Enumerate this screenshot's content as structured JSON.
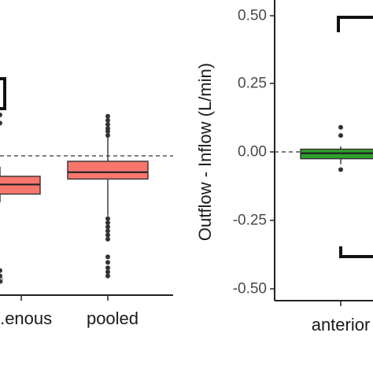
{
  "chart_data": [
    {
      "type": "box",
      "title": "",
      "xlabel": "",
      "ylabel": "",
      "categories": [
        "...enous",
        "pooled"
      ],
      "reference_line": 0.0,
      "series": [
        {
          "category": "...enous",
          "color": "#F8766D",
          "q1": -0.14,
          "median": -0.105,
          "q3": -0.075,
          "whisker_low": -0.17,
          "whisker_high": -0.04,
          "outliers": [
            0.15,
            0.12,
            -0.42,
            -0.44,
            -0.46
          ]
        },
        {
          "category": "pooled",
          "color": "#F8766D",
          "q1": -0.085,
          "median": -0.06,
          "q3": -0.02,
          "whisker_low": -0.22,
          "whisker_high": 0.15,
          "outliers": [
            0.145,
            0.13,
            0.115,
            0.1,
            0.09,
            0.075,
            -0.23,
            -0.245,
            -0.26,
            -0.275,
            -0.29,
            -0.305,
            -0.37,
            -0.39,
            -0.41,
            -0.425,
            -0.44
          ]
        }
      ]
    },
    {
      "type": "box",
      "title": "",
      "xlabel": "",
      "ylabel": "Outflow - Inflow (L/min)",
      "ylim": [
        -0.53,
        0.53
      ],
      "yticks": [
        "0.50",
        "0.25",
        "0.00",
        "-0.25",
        "-0.50"
      ],
      "ytick_values": [
        0.5,
        0.25,
        0.0,
        -0.25,
        -0.5
      ],
      "categories": [
        "anterior"
      ],
      "reference_line": 0.0,
      "series": [
        {
          "category": "anterior",
          "color": "#2CA02C",
          "q1": -0.025,
          "median": -0.005,
          "q3": 0.01,
          "whisker_low": -0.045,
          "whisker_high": 0.02,
          "outliers": [
            0.09,
            0.06,
            -0.065
          ]
        }
      ]
    }
  ]
}
